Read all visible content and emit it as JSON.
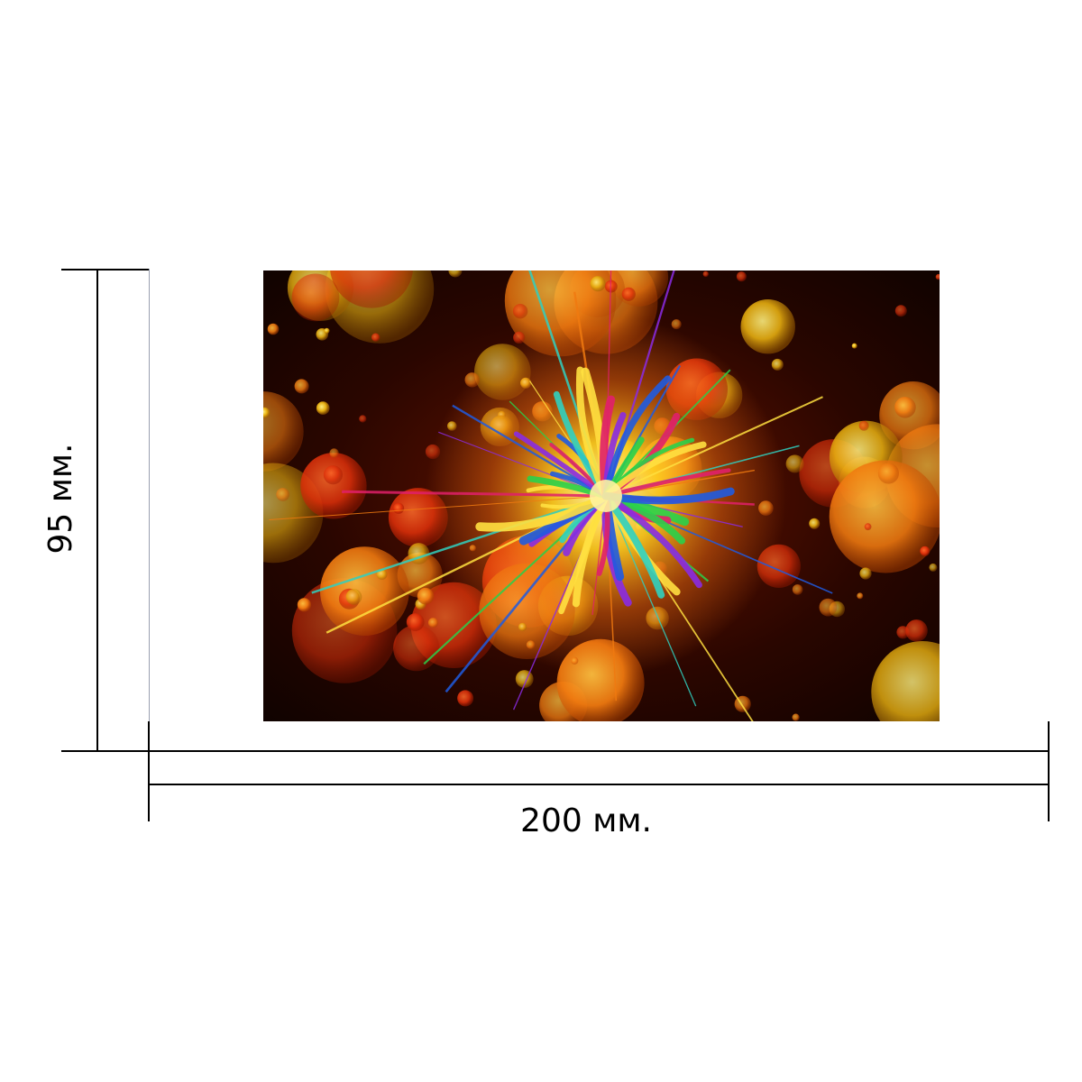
{
  "dimensions": {
    "width_label": "200 мм.",
    "height_label": "95 мм."
  },
  "artwork": {
    "subject": "colorful-starburst-on-bokeh",
    "colors": {
      "background_dark": "#1a0500",
      "bokeh_red": "#e8300a",
      "bokeh_orange": "#f07a10",
      "bokeh_yellow": "#f5c21a",
      "ray_magenta": "#e0206a",
      "ray_violet": "#8a2be2",
      "ray_blue": "#1f5be0",
      "ray_green": "#2ad04a",
      "ray_yellow": "#ffe040",
      "ray_cyan": "#30d0c0"
    }
  },
  "line_color": "#000000"
}
